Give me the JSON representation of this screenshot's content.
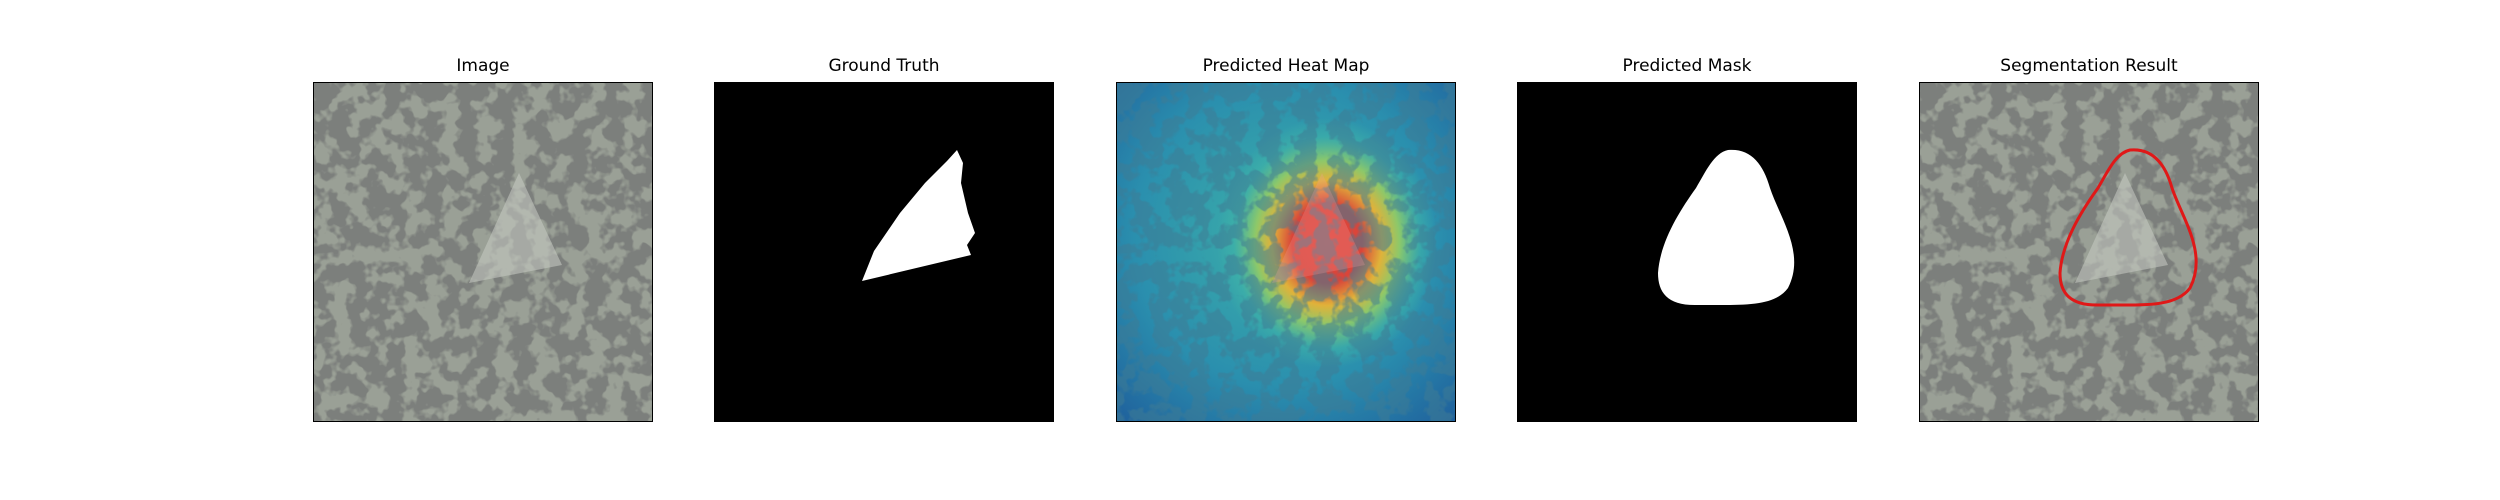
{
  "figure": {
    "panels": [
      {
        "title": "Image"
      },
      {
        "title": "Ground Truth"
      },
      {
        "title": "Predicted Heat Map"
      },
      {
        "title": "Predicted Mask"
      },
      {
        "title": "Segmentation Result"
      }
    ]
  },
  "colors": {
    "texture_light": "#9aa096",
    "texture_dark": "#2e302e",
    "mask_fg": "#ffffff",
    "mask_bg": "#000000",
    "heat_low": "#1f6fa8",
    "heat_mid": "#3fb3a8",
    "heat_high": "#d9453a",
    "contour": "#e01818"
  }
}
